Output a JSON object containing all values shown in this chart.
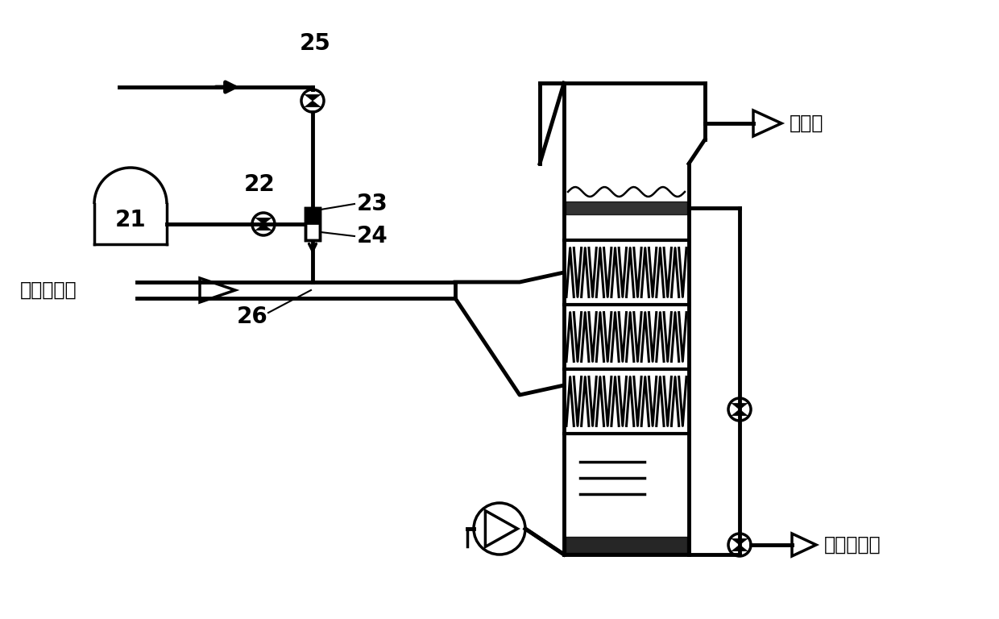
{
  "bg_color": "#ffffff",
  "lc": "#000000",
  "lw": 2.5,
  "tlw": 3.5,
  "label_25": "25",
  "label_22": "22",
  "label_23": "23",
  "label_24": "24",
  "label_21": "21",
  "label_26": "26",
  "text_from_dust": "来自除尘器",
  "text_to_chimney": "去烟囱",
  "text_to_dry": "去干燥结晶",
  "font_size_labels": 20,
  "font_size_chinese": 17
}
